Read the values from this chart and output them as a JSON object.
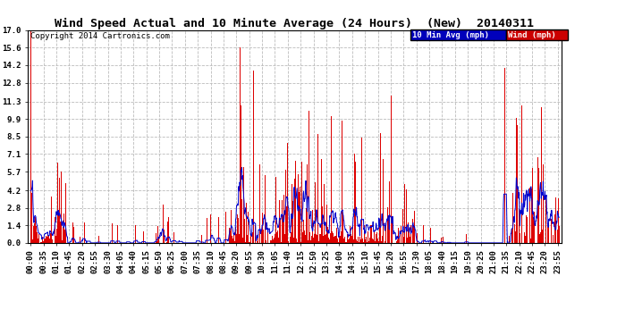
{
  "title": "Wind Speed Actual and 10 Minute Average (24 Hours)  (New)  20140311",
  "copyright": "Copyright 2014 Cartronics.com",
  "legend_avg_label": "10 Min Avg (mph)",
  "legend_wind_label": "Wind (mph)",
  "legend_avg_bg": "#0000bb",
  "legend_wind_bg": "#cc0000",
  "yticks": [
    0.0,
    1.4,
    2.8,
    4.2,
    5.7,
    7.1,
    8.5,
    9.9,
    11.3,
    12.8,
    14.2,
    15.6,
    17.0
  ],
  "ymax": 17.0,
  "ymin": 0.0,
  "background_color": "#ffffff",
  "grid_color": "#bbbbbb",
  "bar_color": "#dd0000",
  "line_color": "#0000cc",
  "title_fontsize": 9.5,
  "copyright_fontsize": 6.5,
  "tick_label_fontsize": 6.5
}
